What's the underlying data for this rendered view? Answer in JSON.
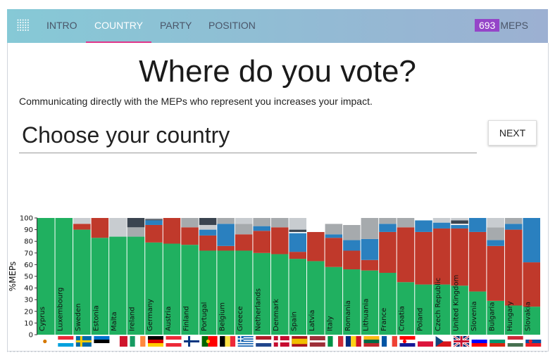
{
  "nav": {
    "items": [
      {
        "label": "INTRO",
        "active": false
      },
      {
        "label": "COUNTRY",
        "active": true
      },
      {
        "label": "PARTY",
        "active": false
      },
      {
        "label": "POSITION",
        "active": false
      }
    ],
    "mep_count": "693",
    "mep_label": "MEPS"
  },
  "header": {
    "title": "Where do you vote?",
    "subtitle": "Communicating directly with the MEPs who represent you increases your impact."
  },
  "search": {
    "placeholder": "Choose your country",
    "next_label": "NEXT"
  },
  "colors": {
    "nav_active_underline": "#e0368a",
    "counter_badge": "#9545c8",
    "green": "#20b060",
    "red": "#c0392b",
    "blue": "#2a80bf",
    "grey": "#a6aaad",
    "light_grey": "#c8ccd0",
    "dark": "#3a4450",
    "white": "#ffffff"
  },
  "chart_data": {
    "type": "bar",
    "stacked": true,
    "ylabel": "%MEPs",
    "ylim": [
      0,
      100
    ],
    "yticks": [
      0,
      10,
      20,
      30,
      40,
      50,
      60,
      70,
      80,
      90,
      100
    ],
    "categories": [
      "Cyprus",
      "Luxembourg",
      "Sweden",
      "Estonia",
      "Malta",
      "Ireland",
      "Germany",
      "Austria",
      "Finland",
      "Portugal",
      "Belgium",
      "Greece",
      "Netherlands",
      "Denmark",
      "Spain",
      "Latvia",
      "Italy",
      "Romania",
      "Lithuania",
      "France",
      "Croatia",
      "Poland",
      "Czech Republic",
      "United Kingdom",
      "Slovenia",
      "Bulgaria",
      "Hungary",
      "Slovakia"
    ],
    "segments": [
      [
        [
          "green",
          100
        ]
      ],
      [
        [
          "green",
          100
        ]
      ],
      [
        [
          "green",
          90
        ],
        [
          "red",
          5
        ],
        [
          "light_grey",
          5
        ]
      ],
      [
        [
          "green",
          83
        ],
        [
          "red",
          17
        ]
      ],
      [
        [
          "green",
          84
        ],
        [
          "light_grey",
          16
        ]
      ],
      [
        [
          "green",
          84
        ],
        [
          "grey",
          8
        ],
        [
          "dark",
          8
        ]
      ],
      [
        [
          "green",
          79
        ],
        [
          "red",
          15
        ],
        [
          "blue",
          4
        ],
        [
          "dark",
          1
        ],
        [
          "light_grey",
          1
        ]
      ],
      [
        [
          "green",
          78
        ],
        [
          "red",
          22
        ]
      ],
      [
        [
          "green",
          77
        ],
        [
          "red",
          15
        ],
        [
          "grey",
          8
        ]
      ],
      [
        [
          "green",
          72
        ],
        [
          "red",
          13
        ],
        [
          "blue",
          5
        ],
        [
          "light_grey",
          4
        ],
        [
          "dark",
          6
        ]
      ],
      [
        [
          "green",
          72
        ],
        [
          "red",
          4
        ],
        [
          "blue",
          19
        ],
        [
          "grey",
          5
        ]
      ],
      [
        [
          "green",
          72
        ],
        [
          "red",
          14
        ],
        [
          "grey",
          9
        ],
        [
          "light_grey",
          5
        ]
      ],
      [
        [
          "green",
          70
        ],
        [
          "red",
          19
        ],
        [
          "blue",
          4
        ],
        [
          "grey",
          7
        ]
      ],
      [
        [
          "green",
          69
        ],
        [
          "red",
          23
        ],
        [
          "grey",
          8
        ]
      ],
      [
        [
          "green",
          65
        ],
        [
          "red",
          6
        ],
        [
          "blue",
          16
        ],
        [
          "white",
          1
        ],
        [
          "dark",
          2
        ],
        [
          "light_grey",
          10
        ]
      ],
      [
        [
          "green",
          63
        ],
        [
          "red",
          25
        ],
        [
          "white",
          12
        ]
      ],
      [
        [
          "green",
          58
        ],
        [
          "red",
          25
        ],
        [
          "blue",
          3
        ],
        [
          "grey",
          9
        ],
        [
          "white",
          5
        ]
      ],
      [
        [
          "green",
          56
        ],
        [
          "red",
          16
        ],
        [
          "blue",
          9
        ],
        [
          "grey",
          13
        ],
        [
          "white",
          6
        ]
      ],
      [
        [
          "green",
          55
        ],
        [
          "red",
          9
        ],
        [
          "blue",
          18
        ],
        [
          "grey",
          18
        ]
      ],
      [
        [
          "green",
          53
        ],
        [
          "red",
          35
        ],
        [
          "blue",
          7
        ],
        [
          "grey",
          5
        ]
      ],
      [
        [
          "green",
          45
        ],
        [
          "red",
          47
        ],
        [
          "grey",
          8
        ]
      ],
      [
        [
          "green",
          43
        ],
        [
          "red",
          45
        ],
        [
          "blue",
          10
        ],
        [
          "white",
          2
        ]
      ],
      [
        [
          "green",
          43
        ],
        [
          "red",
          48
        ],
        [
          "blue",
          5
        ],
        [
          "light_grey",
          4
        ]
      ],
      [
        [
          "green",
          42
        ],
        [
          "red",
          49
        ],
        [
          "blue",
          3
        ],
        [
          "white",
          1
        ],
        [
          "dark",
          3
        ],
        [
          "light_grey",
          2
        ]
      ],
      [
        [
          "green",
          37
        ],
        [
          "red",
          51
        ],
        [
          "blue",
          12
        ]
      ],
      [
        [
          "green",
          29
        ],
        [
          "red",
          47
        ],
        [
          "blue",
          5
        ],
        [
          "grey",
          11
        ],
        [
          "light_grey",
          8
        ]
      ],
      [
        [
          "green",
          25
        ],
        [
          "red",
          65
        ],
        [
          "blue",
          5
        ],
        [
          "grey",
          5
        ]
      ],
      [
        [
          "green",
          24
        ],
        [
          "red",
          38
        ],
        [
          "blue",
          38
        ]
      ]
    ]
  },
  "flags": [
    {
      "country": "Cyprus",
      "stripes": "h",
      "colors": [
        "#ffffff"
      ],
      "emblem": "#d57800"
    },
    {
      "country": "Luxembourg",
      "stripes": "h",
      "colors": [
        "#ed2939",
        "#ffffff",
        "#00a1de"
      ]
    },
    {
      "country": "Sweden",
      "stripes": "nordic",
      "colors": [
        "#006aa7",
        "#fecc00"
      ]
    },
    {
      "country": "Estonia",
      "stripes": "h",
      "colors": [
        "#0072ce",
        "#000000",
        "#ffffff"
      ]
    },
    {
      "country": "Malta",
      "stripes": "v",
      "colors": [
        "#ffffff",
        "#cf142b"
      ]
    },
    {
      "country": "Ireland",
      "stripes": "v",
      "colors": [
        "#169b62",
        "#ffffff",
        "#ff883e"
      ]
    },
    {
      "country": "Germany",
      "stripes": "h",
      "colors": [
        "#000000",
        "#dd0000",
        "#ffce00"
      ]
    },
    {
      "country": "Austria",
      "stripes": "h",
      "colors": [
        "#ed2939",
        "#ffffff",
        "#ed2939"
      ]
    },
    {
      "country": "Finland",
      "stripes": "nordic",
      "colors": [
        "#ffffff",
        "#003580"
      ]
    },
    {
      "country": "Portugal",
      "stripes": "v2",
      "colors": [
        "#006600",
        "#ff0000"
      ],
      "emblem": "#ffcc00"
    },
    {
      "country": "Belgium",
      "stripes": "v",
      "colors": [
        "#000000",
        "#fae042",
        "#ed2939"
      ]
    },
    {
      "country": "Greece",
      "stripes": "greece",
      "colors": [
        "#0d5eaf",
        "#ffffff"
      ]
    },
    {
      "country": "Netherlands",
      "stripes": "h",
      "colors": [
        "#ae1c28",
        "#ffffff",
        "#21468b"
      ]
    },
    {
      "country": "Denmark",
      "stripes": "nordic",
      "colors": [
        "#c60c30",
        "#ffffff"
      ]
    },
    {
      "country": "Spain",
      "stripes": "spain",
      "colors": [
        "#aa151b",
        "#f1bf00"
      ]
    },
    {
      "country": "Latvia",
      "stripes": "latvia",
      "colors": [
        "#9e3039",
        "#ffffff"
      ]
    },
    {
      "country": "Italy",
      "stripes": "v",
      "colors": [
        "#009246",
        "#ffffff",
        "#ce2b37"
      ]
    },
    {
      "country": "Romania",
      "stripes": "v",
      "colors": [
        "#002b7f",
        "#fcd116",
        "#ce1126"
      ]
    },
    {
      "country": "Lithuania",
      "stripes": "h",
      "colors": [
        "#fdb913",
        "#006a44",
        "#c1272d"
      ]
    },
    {
      "country": "France",
      "stripes": "v",
      "colors": [
        "#0055a4",
        "#ffffff",
        "#ef4135"
      ]
    },
    {
      "country": "Croatia",
      "stripes": "h",
      "colors": [
        "#ff0000",
        "#ffffff",
        "#171796"
      ],
      "emblem": "#ff0000"
    },
    {
      "country": "Poland",
      "stripes": "h",
      "colors": [
        "#ffffff",
        "#dc143c"
      ]
    },
    {
      "country": "Czech Republic",
      "stripes": "czech",
      "colors": [
        "#ffffff",
        "#d7141a",
        "#11457e"
      ]
    },
    {
      "country": "United Kingdom",
      "stripes": "uk",
      "colors": [
        "#012169",
        "#ffffff",
        "#c8102e"
      ]
    },
    {
      "country": "Slovenia",
      "stripes": "h",
      "colors": [
        "#ffffff",
        "#0000ff",
        "#ff0000"
      ],
      "emblem": "#0000ff"
    },
    {
      "country": "Bulgaria",
      "stripes": "h",
      "colors": [
        "#ffffff",
        "#00966e",
        "#d62612"
      ]
    },
    {
      "country": "Hungary",
      "stripes": "h",
      "colors": [
        "#ce2939",
        "#ffffff",
        "#477050"
      ]
    },
    {
      "country": "Slovakia",
      "stripes": "h",
      "colors": [
        "#ffffff",
        "#0b4ea2",
        "#ee1c25"
      ],
      "emblem": "#ee1c25"
    }
  ]
}
